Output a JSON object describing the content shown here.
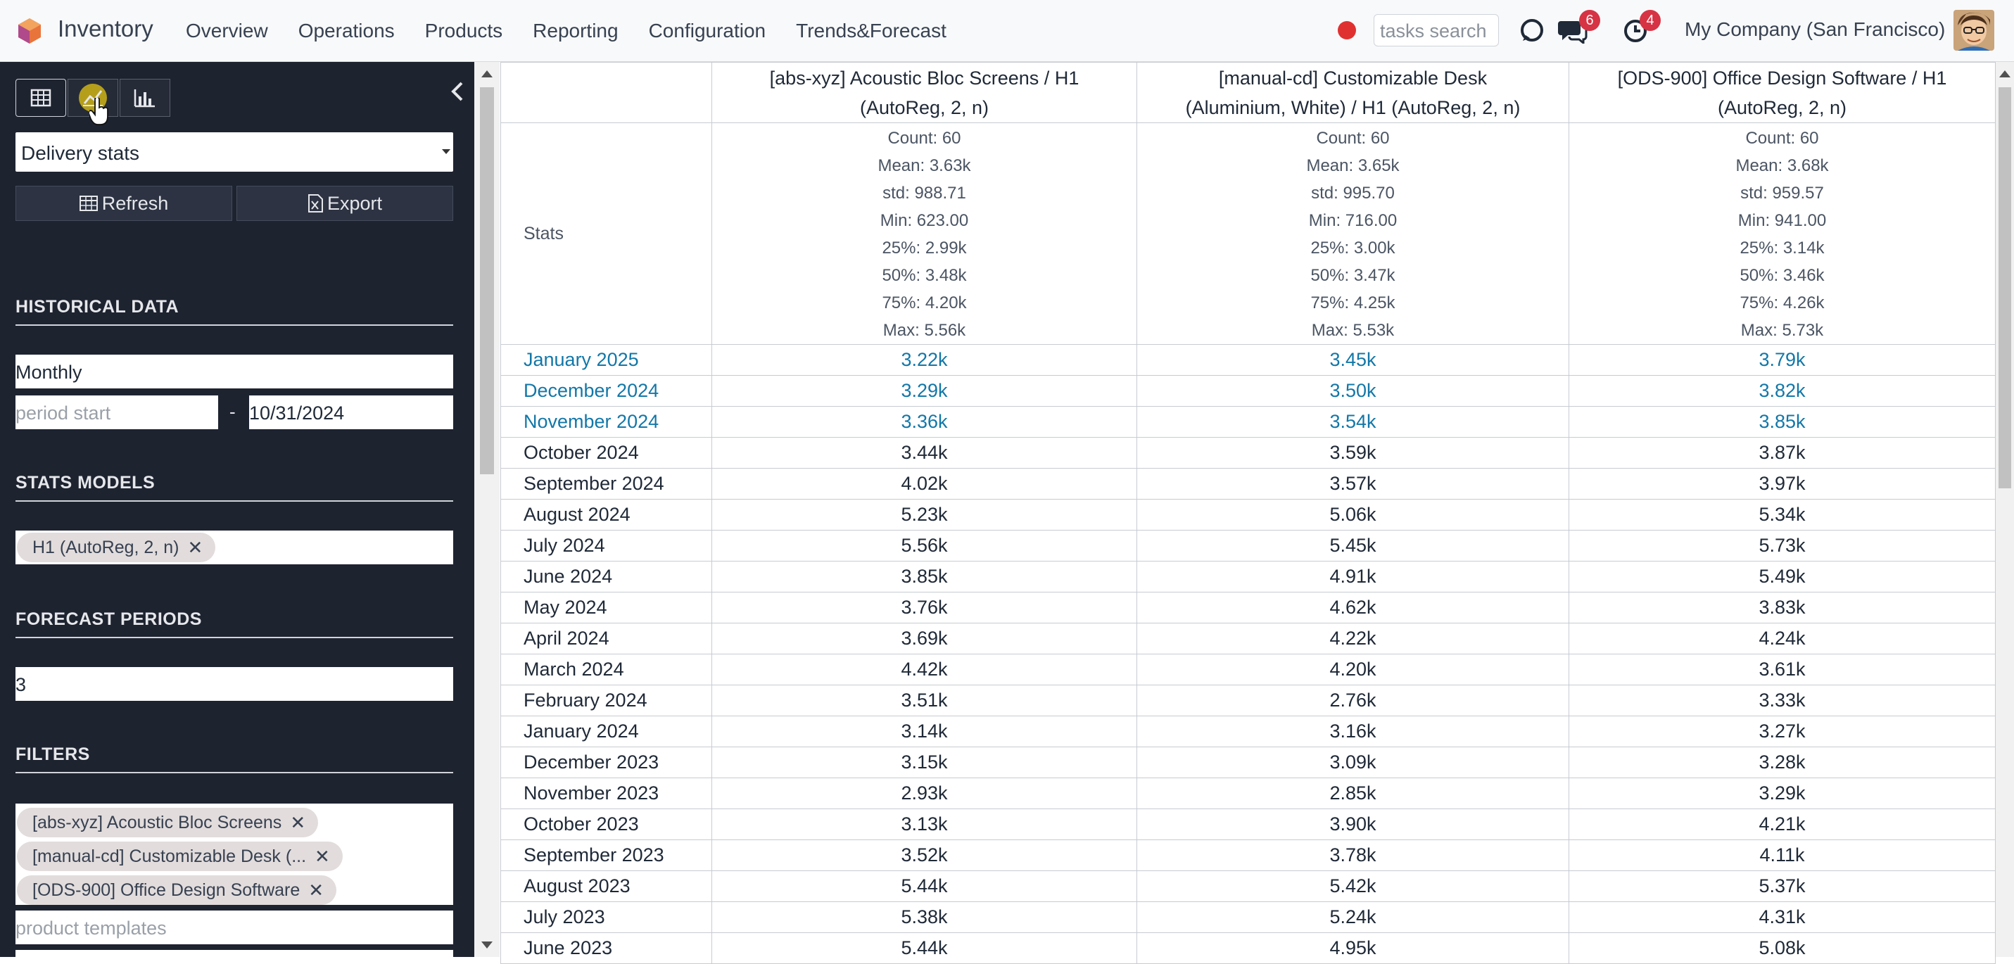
{
  "navbar": {
    "app_name": "Inventory",
    "menu": [
      "Overview",
      "Operations",
      "Products",
      "Reporting",
      "Configuration",
      "Trends&Forecast"
    ],
    "search_placeholder": "tasks search",
    "messages_badge": "6",
    "activities_badge": "4",
    "company": "My Company (San Francisco)"
  },
  "sidebar": {
    "report_select": "Delivery stats",
    "refresh_label": "Refresh",
    "export_label": "Export",
    "historical_title": "HISTORICAL DATA",
    "period": "Monthly",
    "period_start_placeholder": "period start",
    "date_separator": "-",
    "period_end": "10/31/2024",
    "stats_models_title": "STATS MODELS",
    "stats_model_tag": "H1 (AutoReg, 2, n)",
    "forecast_title": "FORECAST PERIODS",
    "forecast_periods": "3",
    "filters_title": "FILTERS",
    "filter_tags": [
      "[abs-xyz] Acoustic Bloc Screens",
      "[manual-cd] Customizable Desk (...",
      "[ODS-900] Office Design Software"
    ],
    "product_templates_placeholder": "product templates"
  },
  "table": {
    "columns": [
      [
        "[abs-xyz] Acoustic Bloc Screens / H1",
        "(AutoReg, 2, n)"
      ],
      [
        "[manual-cd] Customizable Desk",
        "(Aluminium, White) / H1 (AutoReg, 2, n)"
      ],
      [
        "[ODS-900] Office Design Software / H1",
        "(AutoReg, 2, n)"
      ]
    ],
    "stats_label": "Stats",
    "stats": [
      [
        "Count: 60",
        "Mean: 3.63k",
        "std: 988.71",
        "Min: 623.00",
        "25%: 2.99k",
        "50%: 3.48k",
        "75%: 4.20k",
        "Max: 5.56k"
      ],
      [
        "Count: 60",
        "Mean: 3.65k",
        "std: 995.70",
        "Min: 716.00",
        "25%: 3.00k",
        "50%: 3.47k",
        "75%: 4.25k",
        "Max: 5.53k"
      ],
      [
        "Count: 60",
        "Mean: 3.68k",
        "std: 959.57",
        "Min: 941.00",
        "25%: 3.14k",
        "50%: 3.46k",
        "75%: 4.26k",
        "Max: 5.73k"
      ]
    ],
    "rows": [
      {
        "label": "January 2025",
        "forecast": true,
        "v": [
          "3.22k",
          "3.45k",
          "3.79k"
        ]
      },
      {
        "label": "December 2024",
        "forecast": true,
        "v": [
          "3.29k",
          "3.50k",
          "3.82k"
        ]
      },
      {
        "label": "November 2024",
        "forecast": true,
        "v": [
          "3.36k",
          "3.54k",
          "3.85k"
        ]
      },
      {
        "label": "October 2024",
        "forecast": false,
        "v": [
          "3.44k",
          "3.59k",
          "3.87k"
        ]
      },
      {
        "label": "September 2024",
        "forecast": false,
        "v": [
          "4.02k",
          "3.57k",
          "3.97k"
        ]
      },
      {
        "label": "August 2024",
        "forecast": false,
        "v": [
          "5.23k",
          "5.06k",
          "5.34k"
        ]
      },
      {
        "label": "July 2024",
        "forecast": false,
        "v": [
          "5.56k",
          "5.45k",
          "5.73k"
        ]
      },
      {
        "label": "June 2024",
        "forecast": false,
        "v": [
          "3.85k",
          "4.91k",
          "5.49k"
        ]
      },
      {
        "label": "May 2024",
        "forecast": false,
        "v": [
          "3.76k",
          "4.62k",
          "3.83k"
        ]
      },
      {
        "label": "April 2024",
        "forecast": false,
        "v": [
          "3.69k",
          "4.22k",
          "4.24k"
        ]
      },
      {
        "label": "March 2024",
        "forecast": false,
        "v": [
          "4.42k",
          "4.20k",
          "3.61k"
        ]
      },
      {
        "label": "February 2024",
        "forecast": false,
        "v": [
          "3.51k",
          "2.76k",
          "3.33k"
        ]
      },
      {
        "label": "January 2024",
        "forecast": false,
        "v": [
          "3.14k",
          "3.16k",
          "3.27k"
        ]
      },
      {
        "label": "December 2023",
        "forecast": false,
        "v": [
          "3.15k",
          "3.09k",
          "3.28k"
        ]
      },
      {
        "label": "November 2023",
        "forecast": false,
        "v": [
          "2.93k",
          "2.85k",
          "3.29k"
        ]
      },
      {
        "label": "October 2023",
        "forecast": false,
        "v": [
          "3.13k",
          "3.90k",
          "4.21k"
        ]
      },
      {
        "label": "September 2023",
        "forecast": false,
        "v": [
          "3.52k",
          "3.78k",
          "4.11k"
        ]
      },
      {
        "label": "August 2023",
        "forecast": false,
        "v": [
          "5.44k",
          "5.42k",
          "5.37k"
        ]
      },
      {
        "label": "July 2023",
        "forecast": false,
        "v": [
          "5.38k",
          "5.24k",
          "4.31k"
        ]
      },
      {
        "label": "June 2023",
        "forecast": false,
        "v": [
          "5.44k",
          "4.95k",
          "5.08k"
        ]
      }
    ]
  },
  "colors": {
    "forecast_text": "#1277a8",
    "sidebar_bg": "#1e2330",
    "badge": "#d63344"
  }
}
